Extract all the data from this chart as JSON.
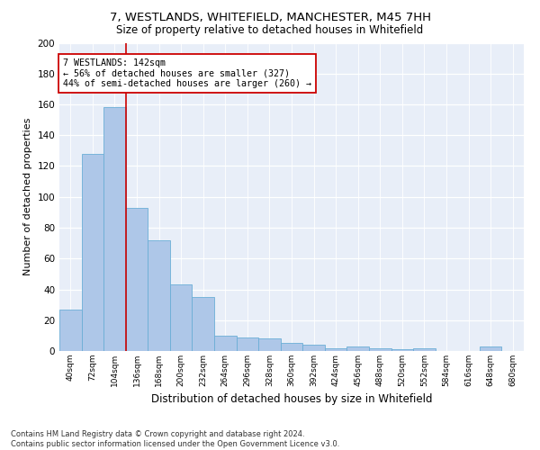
{
  "title1": "7, WESTLANDS, WHITEFIELD, MANCHESTER, M45 7HH",
  "title2": "Size of property relative to detached houses in Whitefield",
  "xlabel": "Distribution of detached houses by size in Whitefield",
  "ylabel": "Number of detached properties",
  "bar_labels": [
    "40sqm",
    "72sqm",
    "104sqm",
    "136sqm",
    "168sqm",
    "200sqm",
    "232sqm",
    "264sqm",
    "296sqm",
    "328sqm",
    "360sqm",
    "392sqm",
    "424sqm",
    "456sqm",
    "488sqm",
    "520sqm",
    "552sqm",
    "584sqm",
    "616sqm",
    "648sqm",
    "680sqm"
  ],
  "bar_values": [
    27,
    128,
    158,
    93,
    72,
    43,
    35,
    10,
    9,
    8,
    5,
    4,
    2,
    3,
    2,
    1,
    2,
    0,
    0,
    3,
    0
  ],
  "bar_color": "#aec7e8",
  "bar_edge_color": "#6baed6",
  "bar_width": 1.0,
  "vline_x": 3.0,
  "vline_color": "#cc0000",
  "annotation_text": "7 WESTLANDS: 142sqm\n← 56% of detached houses are smaller (327)\n44% of semi-detached houses are larger (260) →",
  "annotation_box_color": "#ffffff",
  "annotation_box_edge": "#cc0000",
  "ylim": [
    0,
    200
  ],
  "yticks": [
    0,
    20,
    40,
    60,
    80,
    100,
    120,
    140,
    160,
    180,
    200
  ],
  "footnote": "Contains HM Land Registry data © Crown copyright and database right 2024.\nContains public sector information licensed under the Open Government Licence v3.0.",
  "plot_bg_color": "#e8eef8"
}
